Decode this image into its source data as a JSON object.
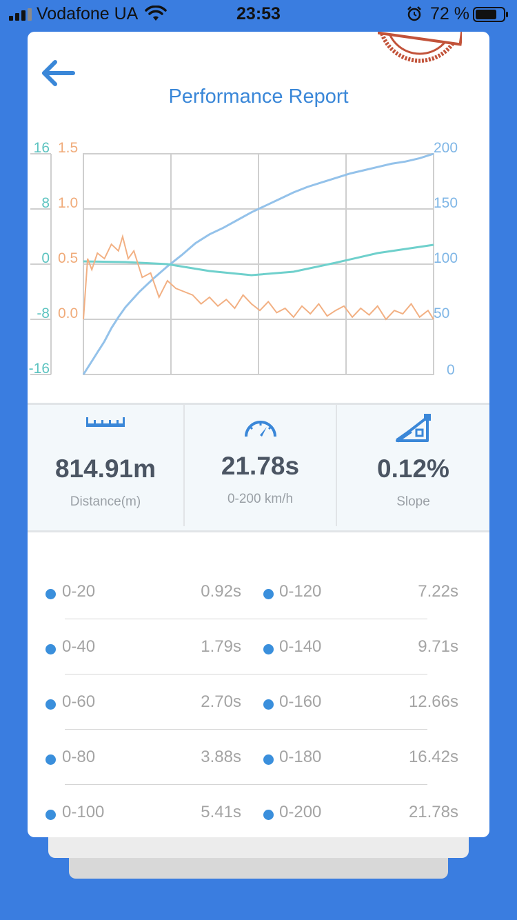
{
  "status_bar": {
    "carrier": "Vodafone UA",
    "time": "23:53",
    "battery_percent": "72 %"
  },
  "header": {
    "title": "Performance Report"
  },
  "chart_data": {
    "type": "line",
    "left_axis_teal": {
      "ticks": [
        "16",
        "8",
        "0",
        "-8",
        "-16"
      ],
      "range": [
        -16,
        16
      ]
    },
    "left_axis_orange": {
      "ticks": [
        "1.5",
        "1.0",
        "0.5",
        "0.0"
      ],
      "range": [
        -0.5,
        1.5
      ]
    },
    "right_axis_blue": {
      "ticks": [
        "200",
        "150",
        "100",
        "50",
        "0"
      ],
      "range": [
        0,
        200
      ]
    },
    "series": [
      {
        "name": "speed",
        "axis": "right",
        "color": "#94c2ea",
        "x": [
          0,
          0.5,
          1,
          1.5,
          2,
          2.5,
          3,
          3.5,
          4,
          5,
          6,
          7,
          8,
          9,
          10,
          11,
          12,
          13,
          14,
          15,
          16,
          17,
          18,
          19,
          20,
          21,
          22,
          23,
          24,
          25
        ],
        "values": [
          0,
          10,
          20,
          30,
          42,
          52,
          61,
          68,
          75,
          87,
          98,
          108,
          119,
          127,
          133,
          140,
          147,
          153,
          159,
          165,
          170,
          174,
          178,
          182,
          185,
          188,
          191,
          193,
          196,
          200
        ]
      },
      {
        "name": "slope",
        "axis": "left-teal",
        "color": "#6fd0cc",
        "x": [
          0,
          3,
          6,
          9,
          12,
          15,
          18,
          21,
          25
        ],
        "values": [
          0.4,
          0.3,
          0,
          -1,
          -1.6,
          -1.1,
          0.2,
          1.6,
          2.8
        ]
      },
      {
        "name": "acceleration",
        "axis": "left-orange",
        "color": "#f2b083",
        "x": [
          0,
          0.3,
          0.6,
          1,
          1.5,
          2,
          2.5,
          2.8,
          3.2,
          3.6,
          4.2,
          4.8,
          5.4,
          6,
          6.6,
          7.2,
          7.8,
          8.4,
          9,
          9.6,
          10.2,
          10.8,
          11.4,
          12,
          12.6,
          13.2,
          13.8,
          14.4,
          15,
          15.6,
          16.2,
          16.8,
          17.4,
          18,
          18.6,
          19.2,
          19.8,
          20.4,
          21,
          21.6,
          22.2,
          22.8,
          23.4,
          24,
          24.6,
          25
        ],
        "values": [
          0.0,
          0.55,
          0.45,
          0.6,
          0.55,
          0.68,
          0.62,
          0.75,
          0.55,
          0.62,
          0.38,
          0.42,
          0.2,
          0.35,
          0.28,
          0.25,
          0.22,
          0.14,
          0.2,
          0.12,
          0.18,
          0.1,
          0.22,
          0.14,
          0.08,
          0.16,
          0.06,
          0.1,
          0.02,
          0.12,
          0.05,
          0.14,
          0.03,
          0.08,
          0.12,
          0.02,
          0.1,
          0.04,
          0.12,
          0.0,
          0.08,
          0.05,
          0.14,
          0.02,
          0.08,
          0.0
        ]
      }
    ],
    "x_range": [
      0,
      25
    ],
    "grid": true
  },
  "stats": [
    {
      "value": "814.91m",
      "label": "Distance(m)",
      "icon": "ruler-icon"
    },
    {
      "value": "21.78s",
      "label": "0-200 km/h",
      "icon": "speedometer-icon"
    },
    {
      "value": "0.12%",
      "label": "Slope",
      "icon": "slope-icon"
    }
  ],
  "splits": [
    [
      {
        "range": "0-20",
        "time": "0.92s"
      },
      {
        "range": "0-120",
        "time": "7.22s"
      }
    ],
    [
      {
        "range": "0-40",
        "time": "1.79s"
      },
      {
        "range": "0-140",
        "time": "9.71s"
      }
    ],
    [
      {
        "range": "0-60",
        "time": "2.70s"
      },
      {
        "range": "0-160",
        "time": "12.66s"
      }
    ],
    [
      {
        "range": "0-80",
        "time": "3.88s"
      },
      {
        "range": "0-180",
        "time": "16.42s"
      }
    ],
    [
      {
        "range": "0-100",
        "time": "5.41s"
      },
      {
        "range": "0-200",
        "time": "21.78s"
      }
    ]
  ],
  "colors": {
    "accent": "#3a87d8",
    "background": "#3a7de0",
    "dot": "#3a8fdc"
  }
}
